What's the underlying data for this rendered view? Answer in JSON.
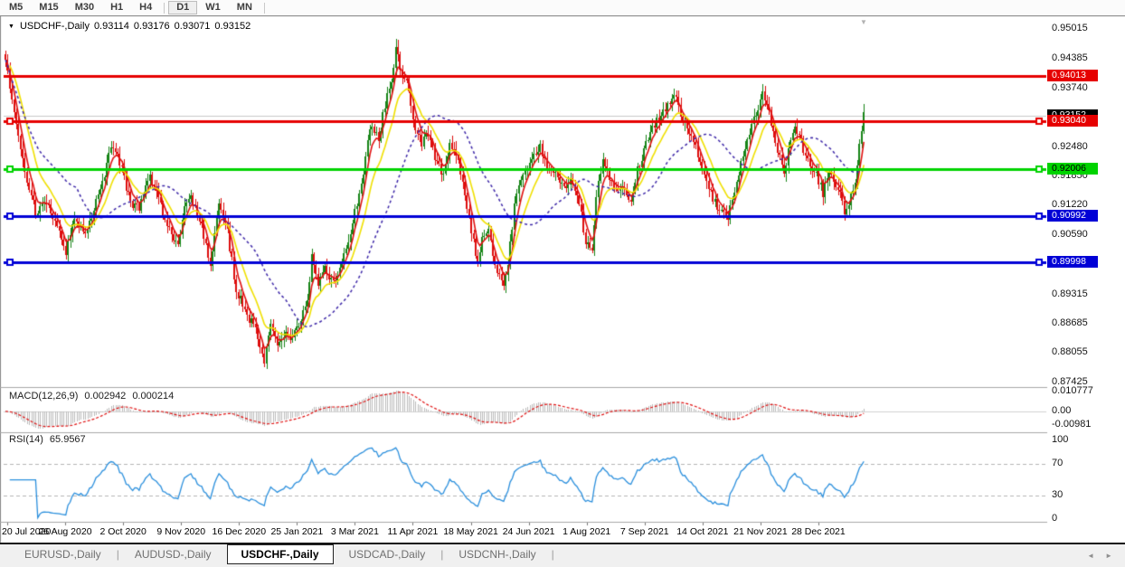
{
  "toolbar": {
    "timeframes": [
      "M5",
      "M15",
      "M30",
      "H1",
      "H4",
      "D1",
      "W1",
      "MN"
    ],
    "active": "D1",
    "dividers_after": [
      "H4",
      "MN"
    ]
  },
  "chart": {
    "symbol_label": "USDCHF-,Daily",
    "open": "0.93114",
    "high": "0.93176",
    "low": "0.93071",
    "close": "0.93152"
  },
  "indicators": {
    "macd": {
      "label": "MACD(12,26,9)",
      "main_value": "0.002942",
      "signal_value": "0.000214",
      "axis_max": "0.010777",
      "axis_zero": "0.00",
      "axis_min": "-0.00981"
    },
    "rsi": {
      "label": "RSI(14)",
      "value": "65.9567",
      "axis": [
        "100",
        "70",
        "30",
        "0"
      ]
    }
  },
  "price_axis": {
    "ticks": [
      "0.95015",
      "0.94385",
      "0.93740",
      "0.92480",
      "0.91850",
      "0.91220",
      "0.90590",
      "0.89315",
      "0.88685",
      "0.88055",
      "0.87425"
    ],
    "tags": [
      {
        "value": "0.93152",
        "bg": "#000000",
        "fg": "#ffffff",
        "role": "current-price"
      },
      {
        "value": "0.94013",
        "bg": "#e60000",
        "fg": "#ffffff",
        "role": "resistance-line"
      },
      {
        "value": "0.93040",
        "bg": "#e60000",
        "fg": "#ffffff",
        "role": "resistance-line"
      },
      {
        "value": "0.92006",
        "bg": "#00d300",
        "fg": "#000000",
        "role": "pivot-line"
      },
      {
        "value": "0.90992",
        "bg": "#0000d6",
        "fg": "#ffffff",
        "role": "support-line"
      },
      {
        "value": "0.89998",
        "bg": "#0000d6",
        "fg": "#ffffff",
        "role": "support-line"
      }
    ]
  },
  "date_axis": {
    "labels": [
      "20 Jul 2020",
      "26 Aug 2020",
      "2 Oct 2020",
      "9 Nov 2020",
      "16 Dec 2020",
      "25 Jan 2021",
      "3 Mar 2021",
      "11 Apr 2021",
      "18 May 2021",
      "24 Jun 2021",
      "1 Aug 2021",
      "7 Sep 2021",
      "14 Oct 2021",
      "21 Nov 2021",
      "28 Dec 2021"
    ]
  },
  "tabs": {
    "items": [
      "EURUSD-,Daily",
      "AUDUSD-,Daily",
      "USDCHF-,Daily",
      "USDCAD-,Daily",
      "USDCNH-,Daily"
    ],
    "active": "USDCHF-,Daily"
  },
  "icons": {
    "header_triangle": "▼",
    "shift_marker": "▼",
    "tab_scroll_left": "◄",
    "tab_scroll_right": "►"
  },
  "chart_data": {
    "type": "candlestick",
    "symbol": "USDCHF",
    "period": "Daily",
    "price_range": {
      "min": 0.87425,
      "max": 0.95015
    },
    "current_price": 0.93152,
    "ohlc_display": [
      0.93114,
      0.93176,
      0.93071,
      0.93152
    ],
    "horizontal_lines": [
      {
        "price": 0.94013,
        "color": "#e60000",
        "width": 3,
        "endpoints": false
      },
      {
        "price": 0.9304,
        "color": "#e60000",
        "width": 3,
        "endpoints": true
      },
      {
        "price": 0.92006,
        "color": "#00d300",
        "width": 3,
        "endpoints": true
      },
      {
        "price": 0.90992,
        "color": "#0000d6",
        "width": 3,
        "endpoints": true
      },
      {
        "price": 0.89998,
        "color": "#0000d6",
        "width": 3,
        "endpoints": true
      }
    ],
    "moving_averages": [
      {
        "type": "ema",
        "period": 5,
        "color": "#e01010",
        "style": "solid"
      },
      {
        "type": "ema",
        "period": 13,
        "color": "#f0e000",
        "style": "solid"
      },
      {
        "type": "sma",
        "period": 34,
        "color": "#3d27a8",
        "style": "dashed"
      }
    ],
    "candle_colors": {
      "up": "#168416",
      "down": "#dd0d0d"
    },
    "macd": {
      "fast": 12,
      "slow": 26,
      "signal": 9,
      "histogram_color": "#bcbcbc",
      "signal_color": "#e01010"
    },
    "rsi": {
      "period": 14,
      "color": "#2a8fdd",
      "levels": [
        70,
        30
      ]
    },
    "bars": 400,
    "price_anchors": [
      [
        0,
        0.943
      ],
      [
        3,
        0.9355
      ],
      [
        6,
        0.927
      ],
      [
        10,
        0.918
      ],
      [
        14,
        0.9108
      ],
      [
        19,
        0.9128
      ],
      [
        23,
        0.9085
      ],
      [
        28,
        0.9022
      ],
      [
        31,
        0.9088
      ],
      [
        37,
        0.9068
      ],
      [
        41,
        0.9115
      ],
      [
        47,
        0.9205
      ],
      [
        49,
        0.9252
      ],
      [
        53,
        0.9218
      ],
      [
        58,
        0.9128
      ],
      [
        62,
        0.912
      ],
      [
        67,
        0.918
      ],
      [
        70,
        0.9148
      ],
      [
        73,
        0.9105
      ],
      [
        77,
        0.9068
      ],
      [
        80,
        0.9032
      ],
      [
        83,
        0.9128
      ],
      [
        86,
        0.9148
      ],
      [
        91,
        0.9075
      ],
      [
        95,
        0.8992
      ],
      [
        99,
        0.9118
      ],
      [
        103,
        0.9065
      ],
      [
        107,
        0.8942
      ],
      [
        112,
        0.8888
      ],
      [
        116,
        0.8855
      ],
      [
        120,
        0.8792
      ],
      [
        123,
        0.8868
      ],
      [
        127,
        0.882
      ],
      [
        130,
        0.8858
      ],
      [
        132,
        0.8832
      ],
      [
        136,
        0.8868
      ],
      [
        140,
        0.8918
      ],
      [
        142,
        0.9008
      ],
      [
        145,
        0.8952
      ],
      [
        148,
        0.8985
      ],
      [
        152,
        0.8955
      ],
      [
        156,
        0.8998
      ],
      [
        160,
        0.9058
      ],
      [
        163,
        0.9128
      ],
      [
        166,
        0.9198
      ],
      [
        169,
        0.9295
      ],
      [
        173,
        0.9268
      ],
      [
        176,
        0.9338
      ],
      [
        179,
        0.9388
      ],
      [
        181,
        0.9465
      ],
      [
        184,
        0.9398
      ],
      [
        187,
        0.9378
      ],
      [
        189,
        0.9302
      ],
      [
        193,
        0.9252
      ],
      [
        196,
        0.9278
      ],
      [
        200,
        0.9212
      ],
      [
        203,
        0.9188
      ],
      [
        206,
        0.9248
      ],
      [
        210,
        0.9222
      ],
      [
        213,
        0.9148
      ],
      [
        215,
        0.9098
      ],
      [
        219,
        0.8992
      ],
      [
        221,
        0.9048
      ],
      [
        224,
        0.9068
      ],
      [
        227,
        0.8992
      ],
      [
        231,
        0.8948
      ],
      [
        233,
        0.8998
      ],
      [
        236,
        0.9118
      ],
      [
        240,
        0.9198
      ],
      [
        244,
        0.9228
      ],
      [
        248,
        0.9252
      ],
      [
        252,
        0.9195
      ],
      [
        255,
        0.9202
      ],
      [
        259,
        0.9158
      ],
      [
        262,
        0.9175
      ],
      [
        266,
        0.9128
      ],
      [
        269,
        0.9048
      ],
      [
        272,
        0.9028
      ],
      [
        274,
        0.9148
      ],
      [
        277,
        0.9222
      ],
      [
        280,
        0.9178
      ],
      [
        283,
        0.9148
      ],
      [
        287,
        0.9158
      ],
      [
        290,
        0.9122
      ],
      [
        293,
        0.9198
      ],
      [
        297,
        0.9258
      ],
      [
        300,
        0.9288
      ],
      [
        304,
        0.9318
      ],
      [
        308,
        0.9338
      ],
      [
        311,
        0.9362
      ],
      [
        314,
        0.9298
      ],
      [
        318,
        0.9278
      ],
      [
        321,
        0.9228
      ],
      [
        324,
        0.9192
      ],
      [
        328,
        0.9138
      ],
      [
        331,
        0.9108
      ],
      [
        335,
        0.9092
      ],
      [
        338,
        0.9158
      ],
      [
        341,
        0.9208
      ],
      [
        345,
        0.9278
      ],
      [
        348,
        0.9318
      ],
      [
        351,
        0.9358
      ],
      [
        354,
        0.9328
      ],
      [
        357,
        0.9248
      ],
      [
        361,
        0.9198
      ],
      [
        363,
        0.9238
      ],
      [
        366,
        0.9288
      ],
      [
        369,
        0.9258
      ],
      [
        372,
        0.9218
      ],
      [
        376,
        0.9188
      ],
      [
        379,
        0.9148
      ],
      [
        382,
        0.9188
      ],
      [
        386,
        0.9158
      ],
      [
        389,
        0.9112
      ],
      [
        392,
        0.9138
      ],
      [
        394,
        0.9178
      ],
      [
        396,
        0.9248
      ],
      [
        398,
        0.9328
      ],
      [
        399,
        0.9315
      ]
    ]
  }
}
